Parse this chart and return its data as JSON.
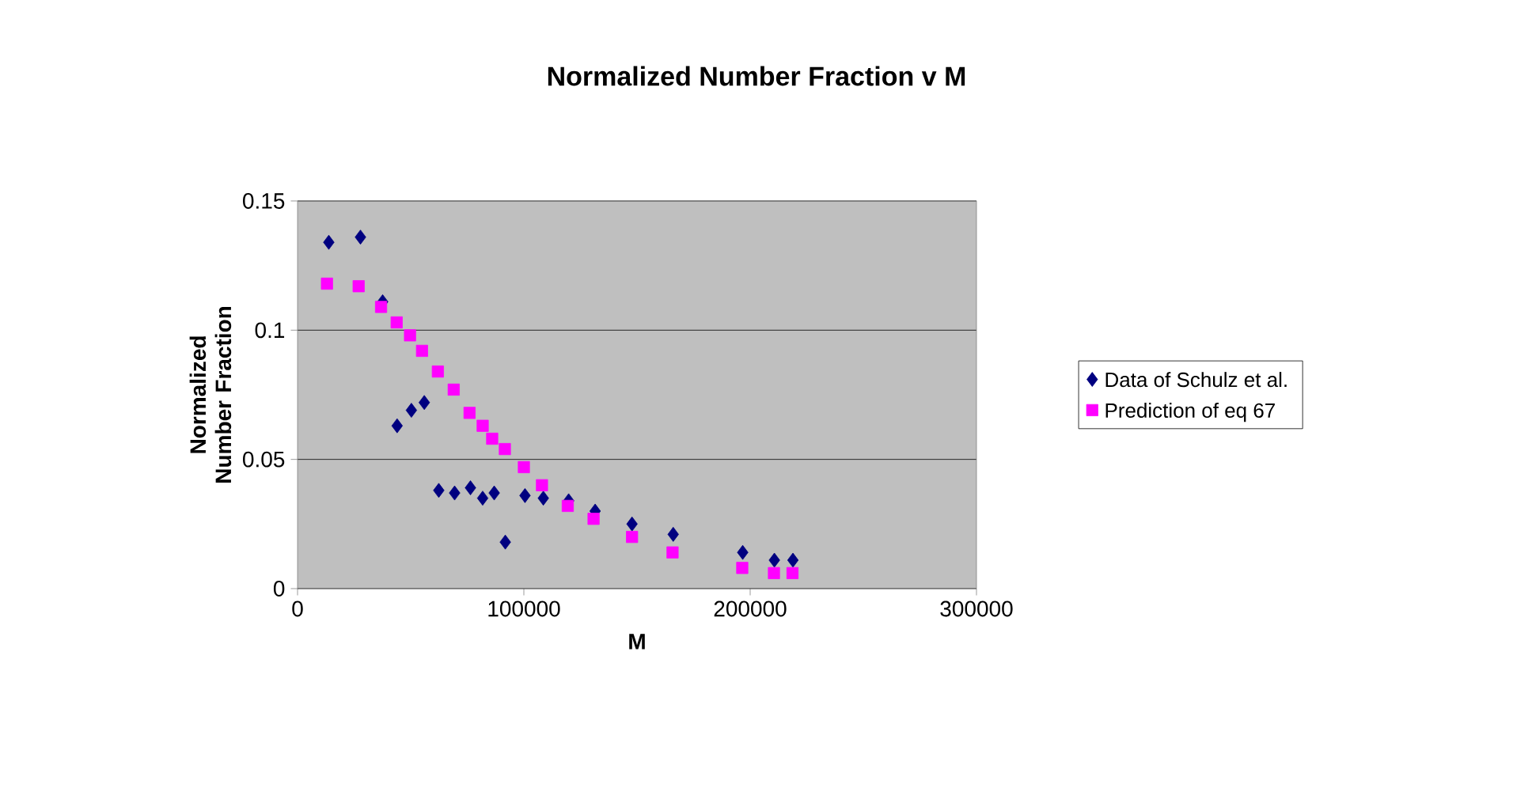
{
  "chart_data": {
    "type": "scatter",
    "title": "Normalized Number Fraction v M",
    "xlabel": "M",
    "ylabel": "Normalized Number Fraction",
    "xlim": [
      0,
      300000
    ],
    "ylim": [
      0,
      0.15
    ],
    "xticks": [
      0,
      100000,
      200000,
      300000
    ],
    "yticks": [
      0,
      0.05,
      0.1,
      0.15
    ],
    "grid": "y",
    "legend": "right",
    "series": [
      {
        "name": "Data of Schulz et al.",
        "color": "#000080",
        "marker": "diamond",
        "x": [
          13800,
          27800,
          37600,
          44000,
          50300,
          56000,
          62400,
          69400,
          76400,
          81800,
          86900,
          91800,
          100500,
          108600,
          119800,
          131500,
          147800,
          166000,
          196700,
          210700,
          218900
        ],
        "values": [
          0.134,
          0.136,
          0.111,
          0.063,
          0.069,
          0.072,
          0.038,
          0.037,
          0.039,
          0.035,
          0.037,
          0.018,
          0.036,
          0.035,
          0.034,
          0.03,
          0.025,
          0.021,
          0.014,
          0.011,
          0.011
        ]
      },
      {
        "name": "Prediction of eq 67",
        "color": "#ff00ff",
        "marker": "square",
        "x": [
          13000,
          27000,
          36900,
          43800,
          49700,
          55000,
          62000,
          69000,
          76000,
          81800,
          86000,
          91600,
          100000,
          108000,
          119400,
          130800,
          147800,
          165700,
          196500,
          210500,
          218700
        ],
        "values": [
          0.118,
          0.117,
          0.109,
          0.103,
          0.098,
          0.092,
          0.084,
          0.077,
          0.068,
          0.063,
          0.058,
          0.054,
          0.047,
          0.04,
          0.032,
          0.027,
          0.02,
          0.014,
          0.008,
          0.006,
          0.006
        ]
      }
    ]
  }
}
